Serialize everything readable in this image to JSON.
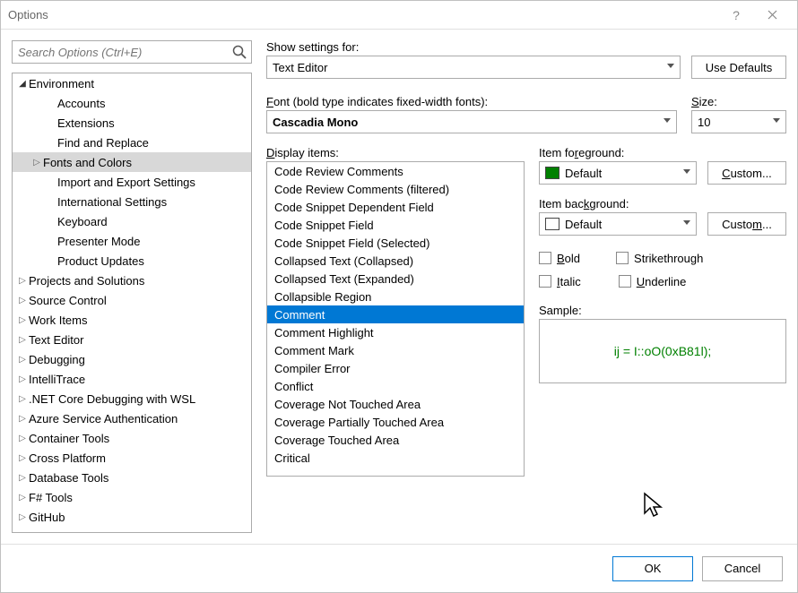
{
  "window": {
    "title": "Options"
  },
  "search": {
    "placeholder": "Search Options (Ctrl+E)"
  },
  "tree": {
    "items": [
      {
        "label": "Environment",
        "depth": 0,
        "exp": "down",
        "sel": false
      },
      {
        "label": "Accounts",
        "depth": 2,
        "exp": "",
        "sel": false
      },
      {
        "label": "Extensions",
        "depth": 2,
        "exp": "",
        "sel": false
      },
      {
        "label": "Find and Replace",
        "depth": 2,
        "exp": "",
        "sel": false
      },
      {
        "label": "Fonts and Colors",
        "depth": 1,
        "exp": "right",
        "sel": true
      },
      {
        "label": "Import and Export Settings",
        "depth": 2,
        "exp": "",
        "sel": false
      },
      {
        "label": "International Settings",
        "depth": 2,
        "exp": "",
        "sel": false
      },
      {
        "label": "Keyboard",
        "depth": 2,
        "exp": "",
        "sel": false
      },
      {
        "label": "Presenter Mode",
        "depth": 2,
        "exp": "",
        "sel": false
      },
      {
        "label": "Product Updates",
        "depth": 2,
        "exp": "",
        "sel": false
      },
      {
        "label": "Projects and Solutions",
        "depth": 0,
        "exp": "right",
        "sel": false
      },
      {
        "label": "Source Control",
        "depth": 0,
        "exp": "right",
        "sel": false
      },
      {
        "label": "Work Items",
        "depth": 0,
        "exp": "right",
        "sel": false
      },
      {
        "label": "Text Editor",
        "depth": 0,
        "exp": "right",
        "sel": false
      },
      {
        "label": "Debugging",
        "depth": 0,
        "exp": "right",
        "sel": false
      },
      {
        "label": "IntelliTrace",
        "depth": 0,
        "exp": "right",
        "sel": false
      },
      {
        "label": ".NET Core Debugging with WSL",
        "depth": 0,
        "exp": "right",
        "sel": false
      },
      {
        "label": "Azure Service Authentication",
        "depth": 0,
        "exp": "right",
        "sel": false
      },
      {
        "label": "Container Tools",
        "depth": 0,
        "exp": "right",
        "sel": false
      },
      {
        "label": "Cross Platform",
        "depth": 0,
        "exp": "right",
        "sel": false
      },
      {
        "label": "Database Tools",
        "depth": 0,
        "exp": "right",
        "sel": false
      },
      {
        "label": "F# Tools",
        "depth": 0,
        "exp": "right",
        "sel": false
      },
      {
        "label": "GitHub",
        "depth": 0,
        "exp": "right",
        "sel": false
      }
    ]
  },
  "showSettings": {
    "label": "Show settings for:",
    "value": "Text Editor",
    "useDefaults": "Use Defaults"
  },
  "font": {
    "label": "Font (bold type indicates fixed-width fonts):",
    "value": "Cascadia Mono"
  },
  "size": {
    "label": "Size:",
    "value": "10"
  },
  "displayItems": {
    "label": "Display items:",
    "items": [
      {
        "label": "Code Review Comments",
        "sel": false
      },
      {
        "label": "Code Review Comments (filtered)",
        "sel": false
      },
      {
        "label": "Code Snippet Dependent Field",
        "sel": false
      },
      {
        "label": "Code Snippet Field",
        "sel": false
      },
      {
        "label": "Code Snippet Field (Selected)",
        "sel": false
      },
      {
        "label": "Collapsed Text (Collapsed)",
        "sel": false
      },
      {
        "label": "Collapsed Text (Expanded)",
        "sel": false
      },
      {
        "label": "Collapsible Region",
        "sel": false
      },
      {
        "label": "Comment",
        "sel": true
      },
      {
        "label": "Comment Highlight",
        "sel": false
      },
      {
        "label": "Comment Mark",
        "sel": false
      },
      {
        "label": "Compiler Error",
        "sel": false
      },
      {
        "label": "Conflict",
        "sel": false
      },
      {
        "label": "Coverage Not Touched Area",
        "sel": false
      },
      {
        "label": "Coverage Partially Touched Area",
        "sel": false
      },
      {
        "label": "Coverage Touched Area",
        "sel": false
      },
      {
        "label": "Critical",
        "sel": false
      }
    ]
  },
  "foreground": {
    "label": "Item foreground:",
    "value": "Default",
    "swatch": "#008000",
    "custom": "Custom..."
  },
  "background": {
    "label": "Item background:",
    "value": "Default",
    "swatch": "#ffffff",
    "custom": "Custom..."
  },
  "styles": {
    "bold": "Bold",
    "italic": "Italic",
    "strike": "Strikethrough",
    "underline": "Underline"
  },
  "sample": {
    "label": "Sample:",
    "text": "ij = I::oO(0xB81l);",
    "color": "#008000"
  },
  "footer": {
    "ok": "OK",
    "cancel": "Cancel"
  }
}
